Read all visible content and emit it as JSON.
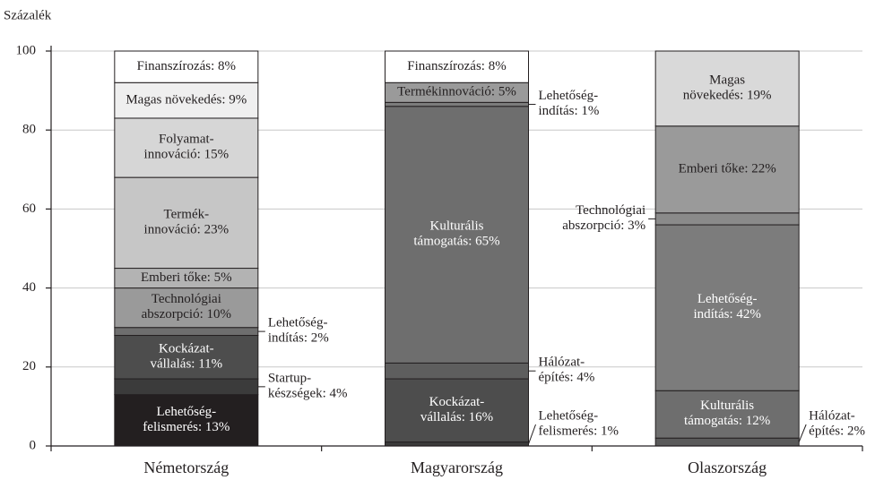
{
  "chart_data": {
    "type": "stacked_bar",
    "y_label": "Százalék",
    "ylim": [
      0,
      100
    ],
    "yticks": [
      0,
      20,
      40,
      60,
      80,
      100
    ],
    "grid": true,
    "categories": [
      "Németország",
      "Magyarország",
      "Olaszország"
    ],
    "bars": [
      {
        "values": [
          13,
          4,
          11,
          2,
          10,
          5,
          23,
          15,
          9,
          8
        ],
        "value_labels": [
          "Lehetőség-\nfelismerés: 13%",
          "Startup-\nkészségek: 4%",
          "Kockázat-\nvállalás: 11%",
          "Lehetőség-\nindítás: 2%",
          "Technológiai\nabszorpció: 10%",
          "Emberi tőke: 5%",
          "Termék-\ninnováció: 23%",
          "Folyamat-\ninnováció: 15%",
          "Magas növekedés: 9%",
          "Finanszírozás: 8%"
        ],
        "colors": [
          "#231f20",
          "#3b3b3b",
          "#4d4d4d",
          "#6e6e6e",
          "#9a9a9a",
          "#b3b3b3",
          "#c6c6c6",
          "#d6d6d6",
          "#efefef",
          "#ffffff"
        ]
      },
      {
        "values": [
          1,
          16,
          4,
          65,
          1,
          5,
          8
        ],
        "value_labels": [
          "Lehetőség-\nfelismerés: 1%",
          "Kockázat-\nvállalás: 16%",
          "Hálózat-\népítés: 4%",
          "Kulturális\ntámogatás: 65%",
          "Lehetőség-\nindítás: 1%",
          "Termékinnováció: 5%",
          "Finanszírozás: 8%"
        ],
        "colors": [
          "#3b3b3b",
          "#4d4d4d",
          "#5e5e5e",
          "#6e6e6e",
          "#7c7c7c",
          "#9a9a9a",
          "#ffffff"
        ]
      },
      {
        "values": [
          2,
          12,
          42,
          3,
          22,
          19
        ],
        "value_labels": [
          "Hálózat-\népítés: 2%",
          "Kulturális\ntámogatás: 12%",
          "Lehetőség-\nindítás: 42%",
          "Technológiai\nabszorpció: 3%",
          "Emberi tőke: 22%",
          "Magas\nnövekedés: 19%"
        ],
        "colors": [
          "#5a5a5a",
          "#6e6e6e",
          "#7c7c7c",
          "#8a8a8a",
          "#9a9a9a",
          "#d9d9d9"
        ]
      }
    ]
  }
}
